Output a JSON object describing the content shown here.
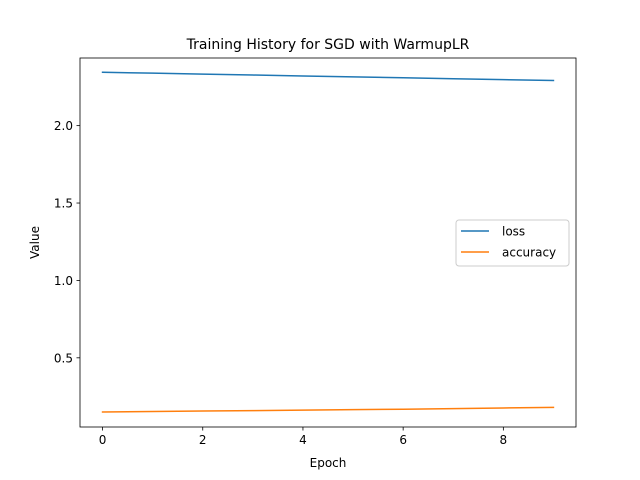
{
  "chart_data": {
    "type": "line",
    "title": "Training History for SGD with WarmupLR",
    "xlabel": "Epoch",
    "ylabel": "Value",
    "x": [
      0,
      1,
      2,
      3,
      4,
      5,
      6,
      7,
      8,
      9
    ],
    "xlim": [
      -0.45,
      9.45
    ],
    "ylim": [
      0.053,
      2.437
    ],
    "xticks": [
      0,
      2,
      4,
      6,
      8
    ],
    "xtick_labels": [
      "0",
      "2",
      "4",
      "6",
      "8"
    ],
    "yticks": [
      0.5,
      1.0,
      1.5,
      2.0
    ],
    "ytick_labels": [
      "0.5",
      "1.0",
      "1.5",
      "2.0"
    ],
    "grid": false,
    "legend_position": "center-right",
    "series": [
      {
        "name": "loss",
        "color": "#1f77b4",
        "values": [
          2.345,
          2.339,
          2.333,
          2.327,
          2.321,
          2.315,
          2.309,
          2.303,
          2.297,
          2.292
        ]
      },
      {
        "name": "accuracy",
        "color": "#ff7f0e",
        "values": [
          0.15,
          0.153,
          0.156,
          0.159,
          0.162,
          0.165,
          0.168,
          0.172,
          0.176,
          0.18
        ]
      }
    ]
  }
}
